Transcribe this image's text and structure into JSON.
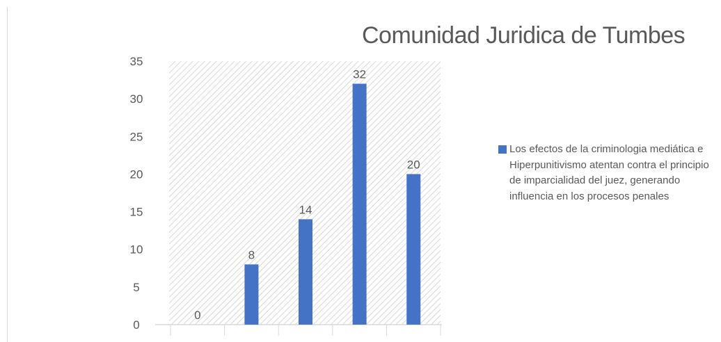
{
  "chart_data": {
    "type": "bar",
    "title": "Comunidad Juridica de Tumbes",
    "xlabel": "",
    "ylabel": "",
    "categories": [
      "",
      "",
      "",
      "",
      ""
    ],
    "series": [
      {
        "name": "Los efectos de la criminologia mediática e Hiperpunitivismo atentan contra el principio de imparcialidad del juez, generando influencia en los procesos penales",
        "values": [
          0,
          8,
          14,
          32,
          20
        ]
      }
    ],
    "ylim": [
      0,
      35
    ],
    "yticks": [
      0,
      5,
      10,
      15,
      20,
      25,
      30,
      35
    ],
    "data_labels": true,
    "grid": false,
    "plot_area_fill": "diagonal-hatch",
    "legend_position": "right",
    "colors": {
      "bar": "#4472c4",
      "hatch": "#bfbfbf",
      "axis": "#d9d9d9",
      "text": "#595959"
    }
  }
}
